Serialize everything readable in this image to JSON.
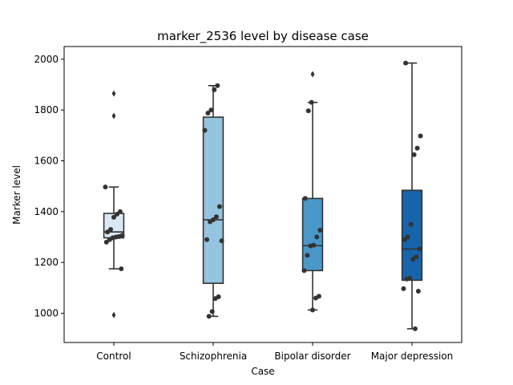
{
  "chart_data": {
    "type": "box",
    "title": "marker_2536 level by disease case",
    "xlabel": "Case",
    "ylabel": "Marker level",
    "ylim": [
      885,
      2050
    ],
    "yticks": [
      1000,
      1200,
      1400,
      1600,
      1800,
      2000
    ],
    "grid": false,
    "legend": "none",
    "categories": [
      "Control",
      "Schizophrenia",
      "Bipolar disorder",
      "Major depression"
    ],
    "colors": [
      "#dae8f5",
      "#94c4df",
      "#4a98c9",
      "#1764ab"
    ],
    "boxes": [
      {
        "q1": 1297,
        "median": 1320,
        "q3": 1393,
        "whisker_low": 1175,
        "whisker_high": 1497,
        "outliers": [
          1865,
          1777,
          993
        ]
      },
      {
        "q1": 1118,
        "median": 1368,
        "q3": 1772,
        "whisker_low": 988,
        "whisker_high": 1896,
        "outliers": []
      },
      {
        "q1": 1168,
        "median": 1266,
        "q3": 1452,
        "whisker_low": 1013,
        "whisker_high": 1830,
        "outliers": [
          1941
        ]
      },
      {
        "q1": 1130,
        "median": 1253,
        "q3": 1484,
        "whisker_low": 939,
        "whisker_high": 1985,
        "outliers": []
      }
    ],
    "points": [
      [
        1497,
        1400,
        1390,
        1378,
        1330,
        1320,
        1307,
        1302,
        1300,
        1297,
        1290,
        1280,
        1175
      ],
      [
        1896,
        1880,
        1800,
        1788,
        1720,
        1420,
        1380,
        1368,
        1360,
        1290,
        1285,
        1065,
        1058,
        1007,
        988
      ],
      [
        1830,
        1797,
        1452,
        1327,
        1300,
        1268,
        1265,
        1228,
        1168,
        1067,
        1060,
        1013
      ],
      [
        1985,
        1698,
        1650,
        1624,
        1350,
        1300,
        1290,
        1253,
        1222,
        1212,
        1138,
        1135,
        1097,
        1087,
        939
      ]
    ]
  }
}
